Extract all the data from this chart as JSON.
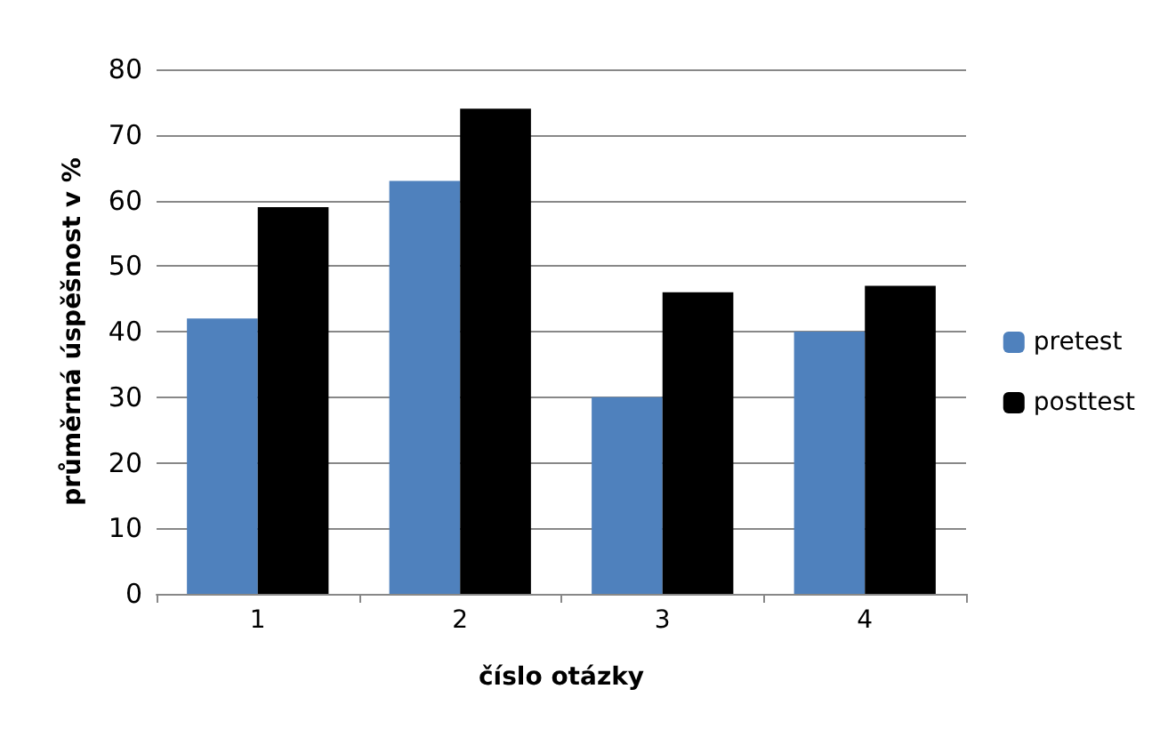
{
  "chart_data": {
    "type": "bar",
    "categories": [
      "1",
      "2",
      "3",
      "4"
    ],
    "xlabel": "číslo otázky",
    "ylabel": "průměrná úspěšnost v %",
    "series": [
      {
        "name": "pretest",
        "color": "#4f81bd",
        "values": [
          42,
          63,
          30,
          40
        ]
      },
      {
        "name": "posttest",
        "color": "#000000",
        "values": [
          59,
          74,
          46,
          47
        ]
      }
    ],
    "ylim": [
      0,
      80
    ],
    "yticks": [
      0,
      10,
      20,
      30,
      40,
      50,
      60,
      70,
      80
    ],
    "grid": "y",
    "legend": "right"
  }
}
